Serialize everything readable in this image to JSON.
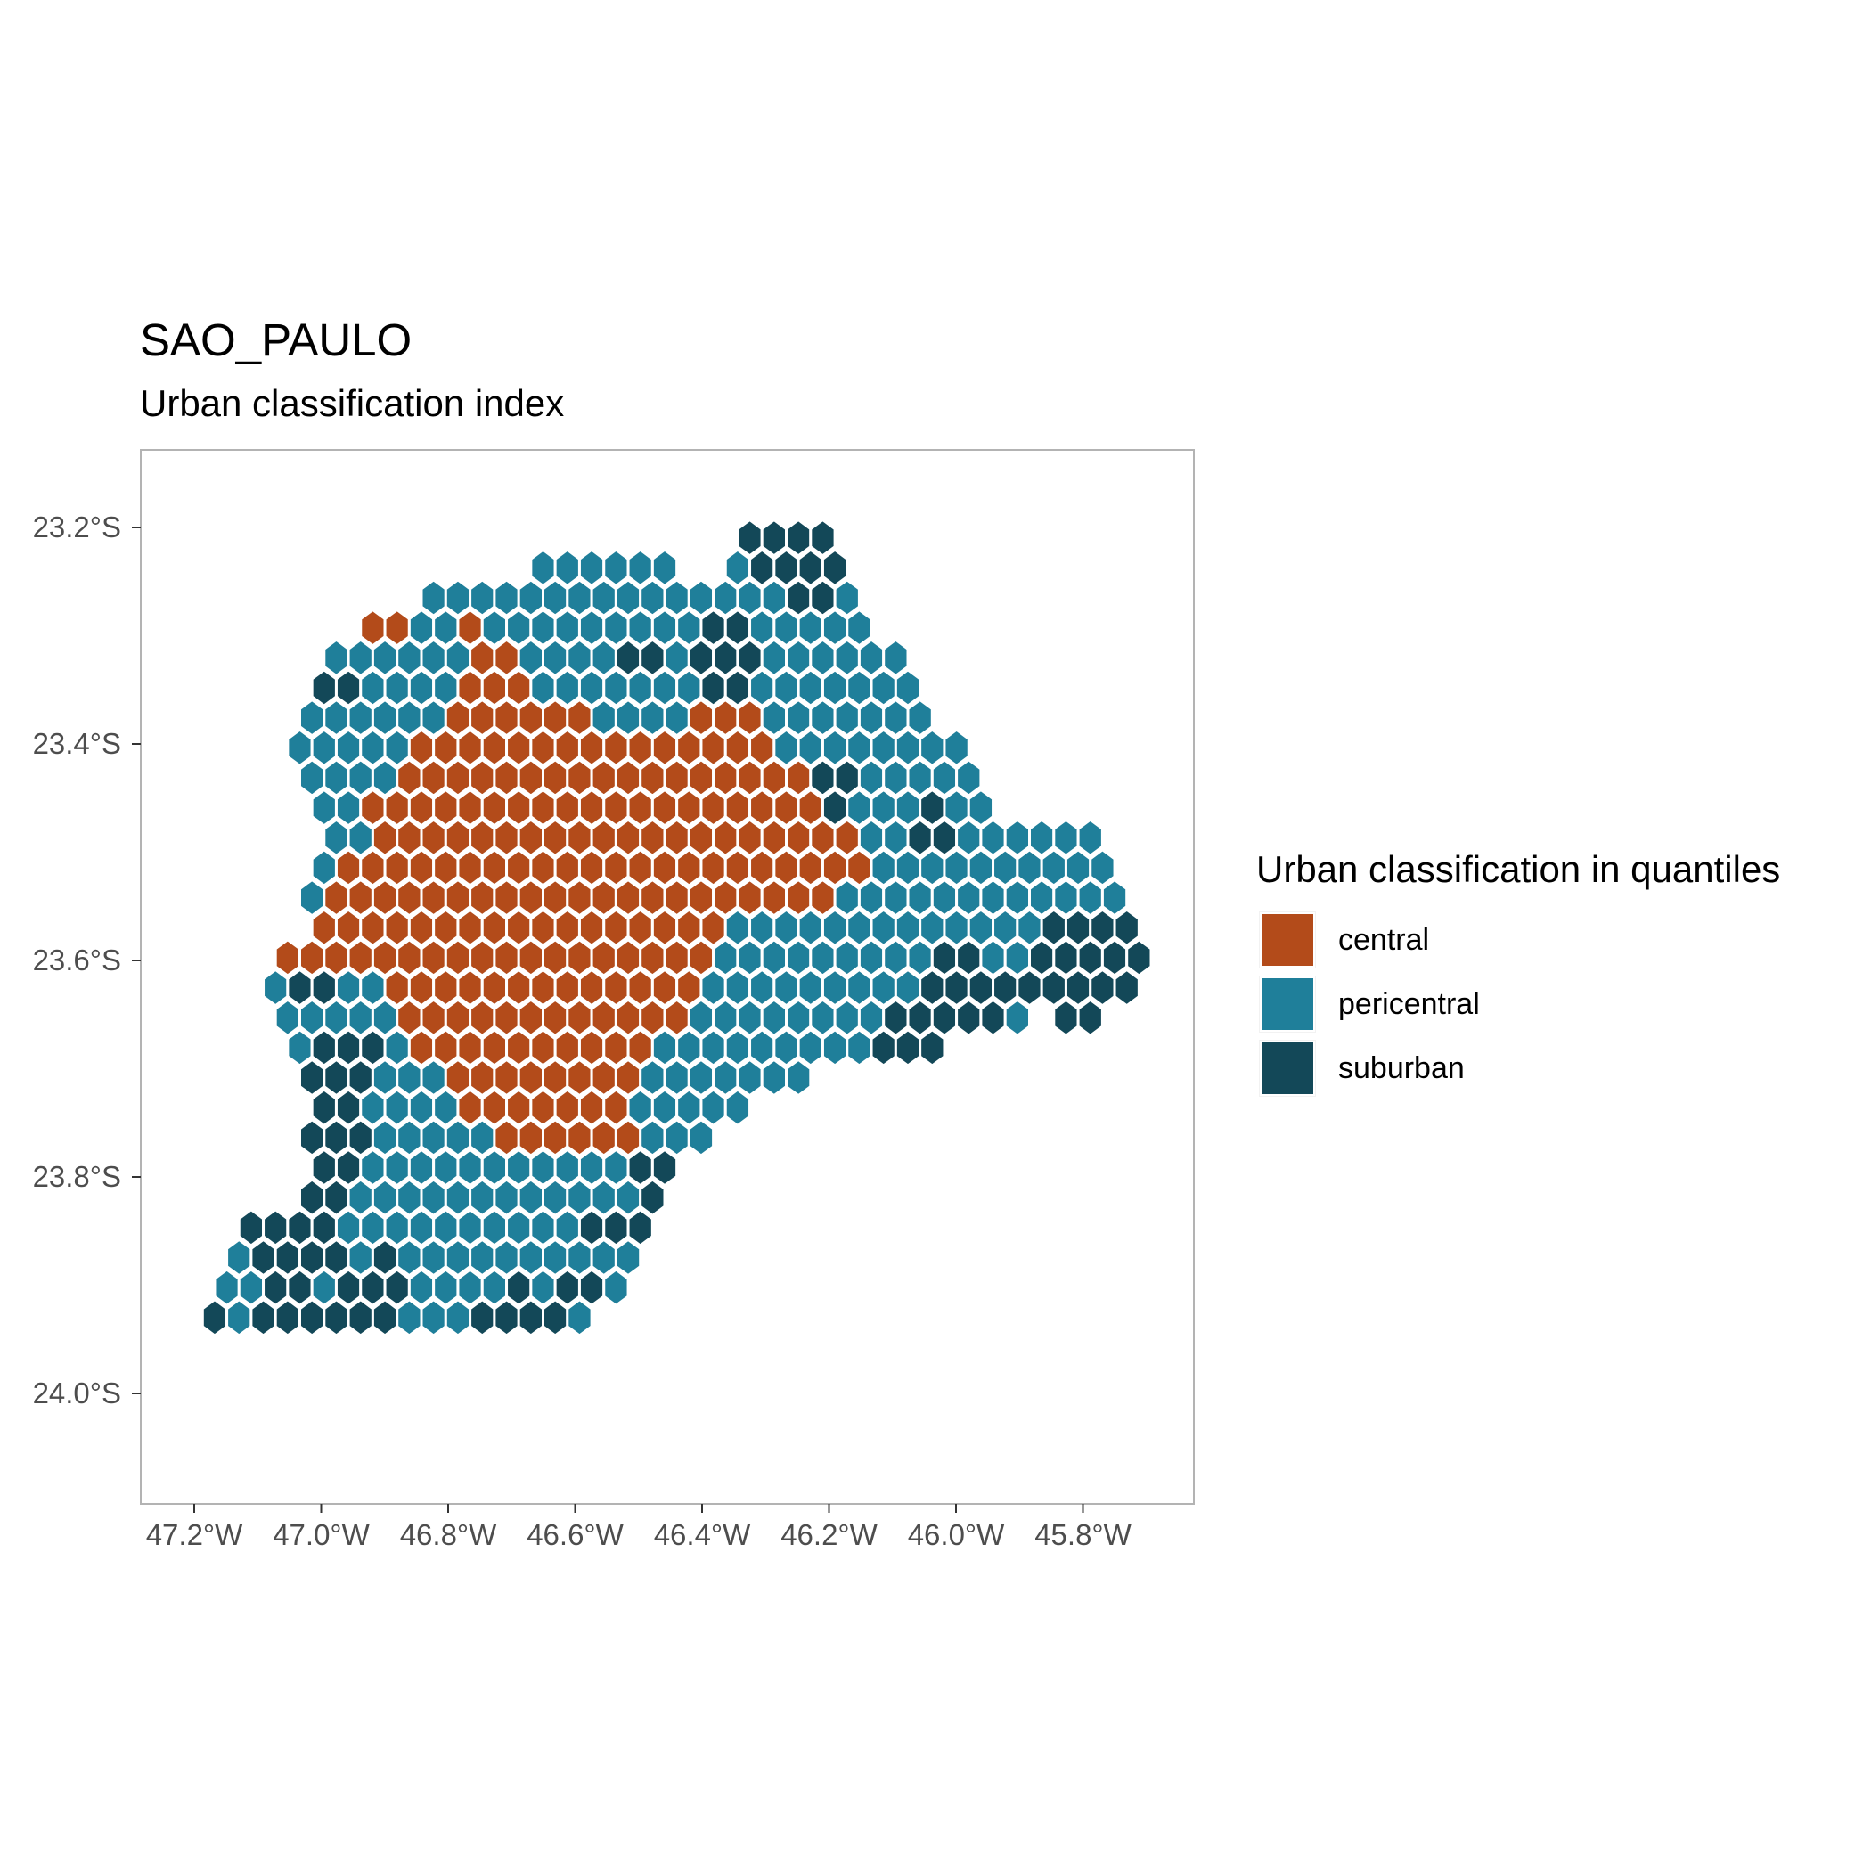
{
  "title": "SAO_PAULO",
  "subtitle": "Urban classification index",
  "legend": {
    "title": "Urban classification in quantiles",
    "items": [
      {
        "label": "central",
        "color": "#b34b1a"
      },
      {
        "label": "pericentral",
        "color": "#1f7f9a"
      },
      {
        "label": "suburban",
        "color": "#134858"
      }
    ]
  },
  "chart_data": {
    "type": "heatmap",
    "map_type": "hexagonal grid choropleth",
    "xlabel": "",
    "ylabel": "",
    "xlim": [
      -47.3,
      -45.63
    ],
    "ylim": [
      -24.1,
      -23.13
    ],
    "x_ticks": [
      {
        "value": -47.2,
        "label": "47.2°W"
      },
      {
        "value": -47.0,
        "label": "47.0°W"
      },
      {
        "value": -46.8,
        "label": "46.8°W"
      },
      {
        "value": -46.6,
        "label": "46.6°W"
      },
      {
        "value": -46.4,
        "label": "46.4°W"
      },
      {
        "value": -46.2,
        "label": "46.2°W"
      },
      {
        "value": -46.0,
        "label": "46.0°W"
      },
      {
        "value": -45.8,
        "label": "45.8°W"
      }
    ],
    "y_ticks": [
      {
        "value": -23.2,
        "label": "23.2°S"
      },
      {
        "value": -23.4,
        "label": "23.4°S"
      },
      {
        "value": -23.6,
        "label": "23.6°S"
      },
      {
        "value": -23.8,
        "label": "23.8°S"
      },
      {
        "value": -24.0,
        "label": "24.0°S"
      }
    ],
    "grid": false,
    "legend_position": "right",
    "categories": [
      "central",
      "pericentral",
      "suburban"
    ],
    "colors": {
      "central": "#b34b1a",
      "pericentral": "#1f7f9a",
      "suburban": "#134858"
    }
  }
}
